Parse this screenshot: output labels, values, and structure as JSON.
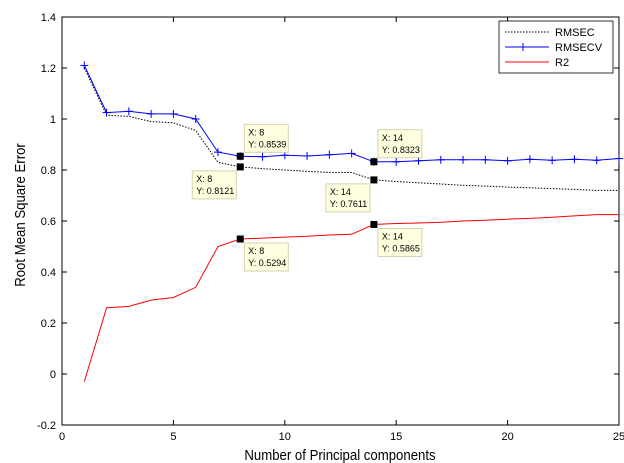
{
  "chart_data": {
    "type": "line",
    "xlabel": "Number of Principal components",
    "ylabel": "Root Mean Square Error",
    "xlim": [
      0,
      25
    ],
    "ylim": [
      -0.2,
      1.4
    ],
    "xticks": [
      "0",
      "5",
      "10",
      "15",
      "20",
      "25"
    ],
    "yticks": [
      "-0.2",
      "0",
      "0.2",
      "0.4",
      "0.6",
      "0.8",
      "1",
      "1.2",
      "1.4"
    ],
    "legend_position": "top-right",
    "grid": false,
    "series": [
      {
        "name": "RMSEC",
        "color": "#000000",
        "style": "dotted",
        "marker": "none",
        "x": [
          1,
          2,
          3,
          4,
          5,
          6,
          7,
          8,
          9,
          10,
          11,
          12,
          13,
          14,
          15,
          16,
          17,
          18,
          19,
          20,
          21,
          22,
          23,
          24,
          25
        ],
        "y": [
          1.2,
          1.015,
          1.01,
          0.99,
          0.985,
          0.955,
          0.83,
          0.8121,
          0.805,
          0.8,
          0.795,
          0.79,
          0.79,
          0.7611,
          0.755,
          0.75,
          0.745,
          0.74,
          0.737,
          0.733,
          0.73,
          0.727,
          0.724,
          0.72,
          0.72
        ]
      },
      {
        "name": "RMSECV",
        "color": "#0000ff",
        "style": "solid",
        "marker": "plus",
        "x": [
          1,
          2,
          3,
          4,
          5,
          6,
          7,
          8,
          9,
          10,
          11,
          12,
          13,
          14,
          15,
          16,
          17,
          18,
          19,
          20,
          21,
          22,
          23,
          24,
          25
        ],
        "y": [
          1.21,
          1.025,
          1.03,
          1.02,
          1.02,
          1.0,
          0.87,
          0.8539,
          0.852,
          0.858,
          0.855,
          0.86,
          0.865,
          0.8323,
          0.832,
          0.836,
          0.84,
          0.84,
          0.84,
          0.836,
          0.842,
          0.838,
          0.842,
          0.838,
          0.845
        ]
      },
      {
        "name": "R2",
        "color": "#ff0000",
        "style": "solid",
        "marker": "none",
        "x": [
          1,
          2,
          3,
          4,
          5,
          6,
          7,
          8,
          9,
          10,
          11,
          12,
          13,
          14,
          15,
          16,
          17,
          18,
          19,
          20,
          21,
          22,
          23,
          24,
          25
        ],
        "y": [
          -0.03,
          0.26,
          0.265,
          0.29,
          0.3,
          0.34,
          0.5,
          0.5294,
          0.533,
          0.537,
          0.54,
          0.545,
          0.548,
          0.5865,
          0.59,
          0.592,
          0.595,
          0.6,
          0.603,
          0.607,
          0.61,
          0.615,
          0.62,
          0.625,
          0.625
        ]
      }
    ],
    "datatips": [
      {
        "x": 8,
        "y": 0.8539,
        "x_label": "X: 8",
        "y_label": "Y: 0.8539",
        "placement": "above-right"
      },
      {
        "x": 8,
        "y": 0.8121,
        "x_label": "X: 8",
        "y_label": "Y: 0.8121",
        "placement": "below-left"
      },
      {
        "x": 8,
        "y": 0.5294,
        "x_label": "X: 8",
        "y_label": "Y: 0.5294",
        "placement": "below-right"
      },
      {
        "x": 14,
        "y": 0.8323,
        "x_label": "X: 14",
        "y_label": "Y: 0.8323",
        "placement": "above-right"
      },
      {
        "x": 14,
        "y": 0.7611,
        "x_label": "X: 14",
        "y_label": "Y: 0.7611",
        "placement": "below-left"
      },
      {
        "x": 14,
        "y": 0.5865,
        "x_label": "X: 14",
        "y_label": "Y: 0.5865",
        "placement": "below-right"
      }
    ]
  }
}
